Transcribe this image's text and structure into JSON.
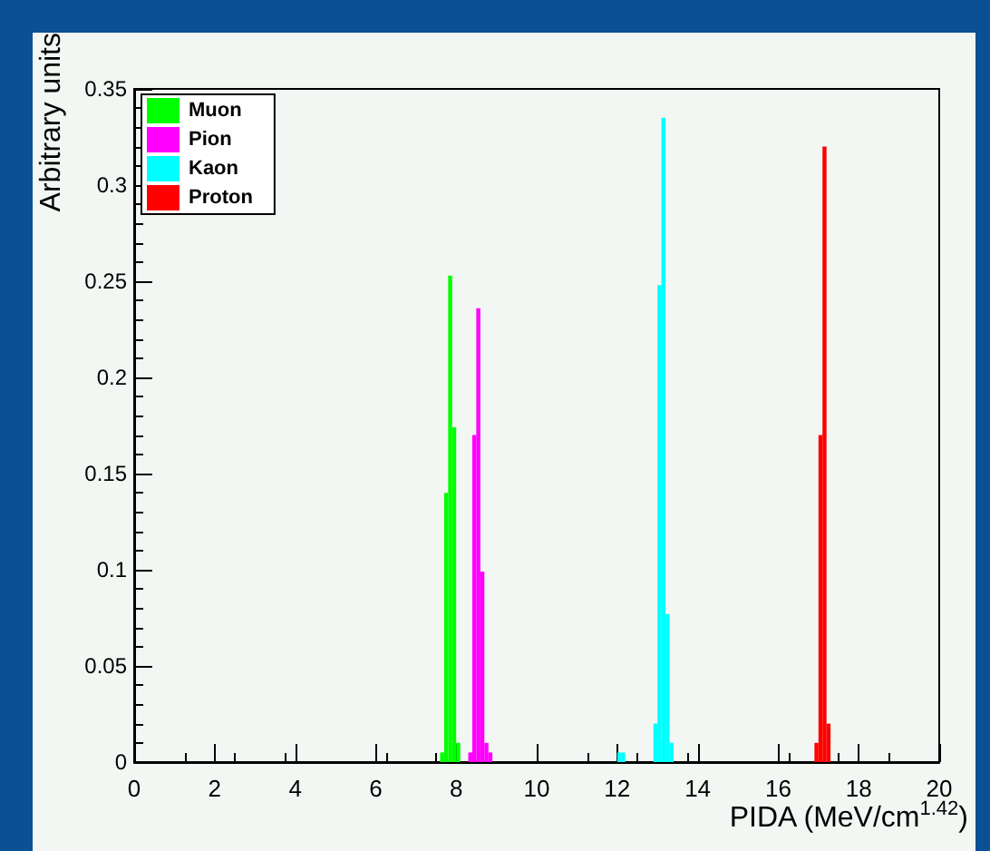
{
  "chart_data": {
    "type": "histogram",
    "xlabel": "PIDA (MeV/cm$^{1.42}$)",
    "ylabel": "Arbitrary units",
    "bins": [
      7.5,
      7.6,
      7.7,
      7.8,
      7.9,
      8.0,
      8.1,
      8.2,
      8.3,
      8.4,
      8.5,
      8.6,
      8.7,
      8.8,
      8.9,
      9.0,
      9.1,
      9.2,
      9.3,
      9.4,
      9.5,
      9.6,
      9.7,
      9.8,
      9.9,
      10.0,
      10.1,
      10.2,
      10.3,
      10.4,
      10.5,
      10.6,
      10.7,
      10.8,
      10.9,
      11.0,
      11.1,
      11.2,
      11.3,
      11.4,
      11.5,
      11.6,
      11.7,
      11.8,
      11.9,
      12.0,
      12.1,
      12.2,
      12.3,
      12.4,
      12.5,
      12.6,
      12.7,
      12.8,
      12.9,
      13.0,
      13.1,
      13.2,
      13.3,
      13.4,
      13.5,
      13.6,
      13.7,
      13.8,
      13.9,
      14.0,
      14.1,
      14.2,
      14.3,
      14.4,
      14.5,
      14.6,
      14.7,
      14.8,
      14.9,
      15.0,
      15.1,
      15.2,
      15.3,
      15.4,
      15.5,
      15.6,
      15.7,
      15.8,
      15.9,
      16.0,
      16.1,
      16.2,
      16.3,
      16.4,
      16.5,
      16.6,
      16.7,
      16.8,
      16.9,
      17.0,
      17.1,
      17.2,
      17.3,
      17.4,
      17.5
    ],
    "series": [
      {
        "name": "Muon",
        "color": "#00ff00",
        "values": [
          0,
          0.005,
          0.14,
          0.253,
          0.174,
          0.01,
          0,
          0,
          0,
          0,
          0,
          0,
          0,
          0,
          0,
          0,
          0,
          0,
          0,
          0,
          0,
          0,
          0,
          0,
          0,
          0,
          0,
          0,
          0,
          0,
          0,
          0,
          0,
          0,
          0,
          0,
          0,
          0,
          0,
          0,
          0,
          0,
          0,
          0,
          0,
          0,
          0,
          0,
          0,
          0,
          0,
          0,
          0,
          0,
          0,
          0,
          0,
          0,
          0,
          0,
          0,
          0,
          0,
          0,
          0,
          0,
          0,
          0,
          0,
          0,
          0,
          0,
          0,
          0,
          0,
          0,
          0,
          0,
          0,
          0,
          0,
          0,
          0,
          0,
          0,
          0,
          0,
          0,
          0,
          0,
          0,
          0,
          0,
          0,
          0,
          0,
          0,
          0,
          0,
          0
        ]
      },
      {
        "name": "Pion",
        "color": "#ff00ff",
        "values": [
          0,
          0,
          0,
          0,
          0,
          0,
          0,
          0,
          0.005,
          0.17,
          0.236,
          0.099,
          0.01,
          0.005,
          0,
          0,
          0,
          0,
          0,
          0,
          0,
          0,
          0,
          0,
          0,
          0,
          0,
          0,
          0,
          0,
          0,
          0,
          0,
          0,
          0,
          0,
          0,
          0,
          0,
          0,
          0,
          0,
          0,
          0,
          0,
          0,
          0,
          0,
          0,
          0,
          0,
          0,
          0,
          0,
          0,
          0,
          0,
          0,
          0,
          0,
          0,
          0,
          0,
          0,
          0,
          0,
          0,
          0,
          0,
          0,
          0,
          0,
          0,
          0,
          0,
          0,
          0,
          0,
          0,
          0,
          0,
          0,
          0,
          0,
          0,
          0,
          0,
          0,
          0,
          0,
          0,
          0,
          0,
          0,
          0,
          0,
          0,
          0,
          0,
          0
        ]
      },
      {
        "name": "Kaon",
        "color": "#00ffff",
        "values": [
          0,
          0,
          0,
          0,
          0,
          0,
          0,
          0,
          0,
          0,
          0,
          0,
          0,
          0,
          0,
          0,
          0,
          0,
          0,
          0,
          0,
          0,
          0,
          0,
          0,
          0,
          0,
          0,
          0,
          0,
          0,
          0,
          0,
          0,
          0,
          0,
          0,
          0,
          0,
          0,
          0,
          0,
          0,
          0,
          0,
          0.005,
          0.005,
          0,
          0,
          0,
          0,
          0,
          0,
          0,
          0.02,
          0.248,
          0.335,
          0.077,
          0.01,
          0,
          0,
          0,
          0,
          0,
          0,
          0,
          0,
          0,
          0,
          0,
          0,
          0,
          0,
          0,
          0,
          0,
          0,
          0,
          0,
          0,
          0,
          0,
          0,
          0,
          0,
          0,
          0,
          0,
          0,
          0,
          0,
          0,
          0,
          0,
          0,
          0,
          0,
          0,
          0,
          0
        ]
      },
      {
        "name": "Proton",
        "color": "#ff0000",
        "values": [
          0,
          0,
          0,
          0,
          0,
          0,
          0,
          0,
          0,
          0,
          0,
          0,
          0,
          0,
          0,
          0,
          0,
          0,
          0,
          0,
          0,
          0,
          0,
          0,
          0,
          0,
          0,
          0,
          0,
          0,
          0,
          0,
          0,
          0,
          0,
          0,
          0,
          0,
          0,
          0,
          0,
          0,
          0,
          0,
          0,
          0,
          0,
          0,
          0,
          0,
          0,
          0,
          0,
          0,
          0,
          0,
          0,
          0,
          0,
          0,
          0,
          0,
          0,
          0,
          0,
          0,
          0,
          0,
          0,
          0,
          0,
          0,
          0,
          0,
          0,
          0,
          0,
          0,
          0,
          0,
          0,
          0,
          0,
          0,
          0,
          0,
          0,
          0,
          0,
          0,
          0,
          0,
          0,
          0,
          0.01,
          0.17,
          0.32,
          0.02,
          0,
          0
        ]
      }
    ],
    "xlim": [
      0,
      20
    ],
    "xticks": [
      0,
      2,
      4,
      6,
      8,
      10,
      12,
      14,
      16,
      18,
      20
    ],
    "ylim": [
      0,
      0.35
    ],
    "yticks": [
      0,
      0.05,
      0.1,
      0.15,
      0.2,
      0.25,
      0.3,
      0.35
    ],
    "legend": "top left",
    "grid": false
  }
}
